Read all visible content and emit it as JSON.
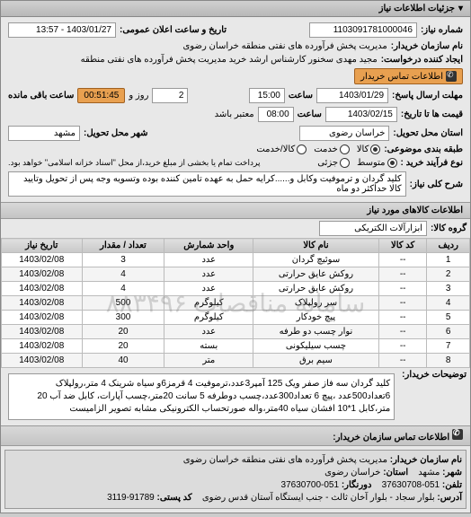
{
  "panel_title": "جزئیات اطلاعات نیاز",
  "info": {
    "req_no_label": "شماره نیاز:",
    "req_no": "1103091781000046",
    "announce_label": "تاریخ و ساعت اعلان عمومی:",
    "announce_value": "1403/01/27 - 13:57",
    "buyer_name_label": "نام سازمان خریدار:",
    "buyer_name": "مدیریت پخش فرآورده های نفتی منطقه خراسان رضوی",
    "requester_label": "ایجاد کننده درخواست:",
    "requester": "مجید مهدی سخنور کارشناس ارشد خرید مدیریت پخش فرآورده های نفتی منطقه",
    "buyer_contact_btn": "اطلاعات تماس خریدار",
    "send_deadline_label": "مهلت ارسال پاسخ:",
    "send_date": "1403/01/29",
    "time_label": "ساعت",
    "send_time": "15:00",
    "remain_label": "ساعت باقی مانده",
    "remain_days": "2",
    "remain_and": "روز و",
    "remain_time": "00:51:45",
    "valid_until_label": "قیمت ها تا تاریخ:",
    "valid_date": "1403/02/15",
    "valid_time": "08:00",
    "valid_suffix": "معتبر باشد",
    "province_label": "استان محل تحویل:",
    "province": "خراسان رضوی",
    "city_label": "شهر محل تحویل:",
    "city": "مشهد",
    "pack_label": "طبقه بندی موضوعی:",
    "pack_opts": [
      "کالا",
      "خدمت",
      "کالا/خدمت"
    ],
    "pack_sel": 0,
    "grade_label": "نوع فرآیند خرید :",
    "grade_opts": [
      "متوسط",
      "جزئی"
    ],
    "grade_sel": 0,
    "pay_note": "پرداخت تمام یا بخشی از مبلغ خرید،از محل \"اسناد خزانه اسلامی\" خواهد بود.",
    "full_desc_label": "شرح کلی نیاز:",
    "full_desc": "کلید گردان و ترموفیت وکابل و......کرایه حمل به عهده تامین کننده بوده وتسویه وجه پس از تحویل وتایید کالا حداکثر دو ماه"
  },
  "goods_header": "اطلاعات کالاهای مورد نیاز",
  "group_label": "گروه کالا:",
  "group_value": "ابزارآلات الکتریکی",
  "table": {
    "columns": [
      "ردیف",
      "کد کالا",
      "نام کالا",
      "واحد شمارش",
      "تعداد / مقدار",
      "تاریخ نیاز"
    ],
    "rows": [
      [
        "1",
        "--",
        "سوئیچ گردان",
        "عدد",
        "3",
        "1403/02/08"
      ],
      [
        "2",
        "--",
        "روکش عایق حرارتی",
        "عدد",
        "4",
        "1403/02/08"
      ],
      [
        "3",
        "--",
        "روکش عایق حرارتی",
        "عدد",
        "4",
        "1403/02/08"
      ],
      [
        "4",
        "--",
        "سر رولپلاک",
        "کیلوگرم",
        "500",
        "1403/02/08"
      ],
      [
        "5",
        "--",
        "پیچ خودکار",
        "کیلوگرم",
        "300",
        "1403/02/08"
      ],
      [
        "6",
        "--",
        "نوار چسب دو طرفه",
        "عدد",
        "20",
        "1403/02/08"
      ],
      [
        "7",
        "--",
        "چسب سیلیکونی",
        "بسته",
        "20",
        "1403/02/08"
      ],
      [
        "8",
        "--",
        "سیم برق",
        "متر",
        "40",
        "1403/02/08"
      ]
    ],
    "watermark": "سامانه مناقصات ۸۸۳۴۹۶"
  },
  "buyer_desc_label": "توضیحات خریدار:",
  "buyer_desc": "کلید گردان سه فاز صفر ویک 125 آمپر3عدد،ترموفیت 4 قرمز6و سیاه شرینک 4 متر،رولپلاک 6تعداد500عدد ،پیچ 6 تعداد300عدد،چسب دوطرفه 5 سانت 20متر،چسب آپارات، کابل ضد آب 20 متر،کابل 1*10 افشان سیاه 40متر،واله صورتحساب الکترونیکی مشابه تصویر الزامیست",
  "contact_header": "اطلاعات تماس سازمان خریدار:",
  "contact": {
    "org_label": "نام سازمان خریدار:",
    "org": "مدیریت پخش فرآورده های نفتی منطقه خراسان رضوی",
    "city_label": "شهر:",
    "city": "مشهد",
    "prov_label": "استان:",
    "prov": "خراسان رضوی",
    "tel_label": "تلفن:",
    "tel": "051-37630708",
    "fax_label": "دورنگار:",
    "fax": "051-37630700",
    "addr_label": "آدرس:",
    "addr": "بلوار سجاد - بلوار آخان ثالث - جنب ایستگاه آستان قدس رضوی",
    "post_label": "کد پستی:",
    "post": "91789-3119"
  },
  "colors": {
    "panel_bg": "#e8e8e8",
    "header_grad_top": "#d0d0d0",
    "header_grad_bot": "#b8b8b8",
    "orange": "#e8a050",
    "border": "#888888"
  }
}
